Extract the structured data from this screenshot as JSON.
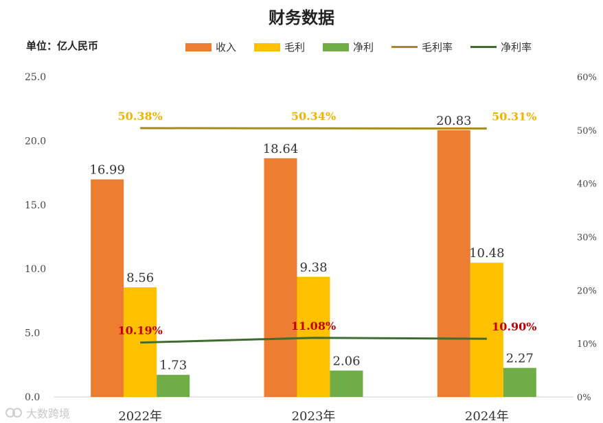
{
  "title": "财务数据",
  "unit_label": "单位：亿人民币",
  "colors": {
    "revenue": "#ED7D31",
    "gross_profit": "#FFC000",
    "net_profit": "#70AD47",
    "gross_margin": "#A68A1C",
    "net_margin": "#3E6B2F",
    "gross_margin_label": "#F0B400",
    "net_margin_label": "#C00000"
  },
  "legend": [
    {
      "label": "收入",
      "kind": "bar",
      "color_key": "revenue"
    },
    {
      "label": "毛利",
      "kind": "bar",
      "color_key": "gross_profit"
    },
    {
      "label": "净利",
      "kind": "bar",
      "color_key": "net_profit"
    },
    {
      "label": "毛利率",
      "kind": "line",
      "color_key": "gross_margin"
    },
    {
      "label": "净利率",
      "kind": "line",
      "color_key": "net_margin"
    }
  ],
  "watermark": "大数跨境",
  "chart_data": {
    "type": "bar",
    "title": "财务数据",
    "categories": [
      "2022年",
      "2023年",
      "2024年"
    ],
    "series": [
      {
        "name": "收入",
        "type": "bar",
        "axis": "left",
        "values": [
          16.99,
          18.64,
          20.83
        ],
        "labels": [
          "16.99",
          "18.64",
          "20.83"
        ]
      },
      {
        "name": "毛利",
        "type": "bar",
        "axis": "left",
        "values": [
          8.56,
          9.38,
          10.48
        ],
        "labels": [
          "8.56",
          "9.38",
          "10.48"
        ]
      },
      {
        "name": "净利",
        "type": "bar",
        "axis": "left",
        "values": [
          1.73,
          2.06,
          2.27
        ],
        "labels": [
          "1.73",
          "2.06",
          "2.27"
        ]
      },
      {
        "name": "毛利率",
        "type": "line",
        "axis": "right",
        "values": [
          50.38,
          50.34,
          50.31
        ],
        "labels": [
          "50.38%",
          "50.34%",
          "50.31%"
        ]
      },
      {
        "name": "净利率",
        "type": "line",
        "axis": "right",
        "values": [
          10.19,
          11.08,
          10.9
        ],
        "labels": [
          "10.19%",
          "11.08%",
          "10.90%"
        ]
      }
    ],
    "ylabel": "单位：亿人民币",
    "ylim": [
      0,
      25
    ],
    "yticks": [
      "0.0",
      "5.0",
      "10.0",
      "15.0",
      "20.0",
      "25.0"
    ],
    "y2lim": [
      0,
      60
    ],
    "y2ticks": [
      "0%",
      "10%",
      "20%",
      "30%",
      "40%",
      "50%",
      "60%"
    ],
    "grid": false,
    "legend_position": "top"
  }
}
